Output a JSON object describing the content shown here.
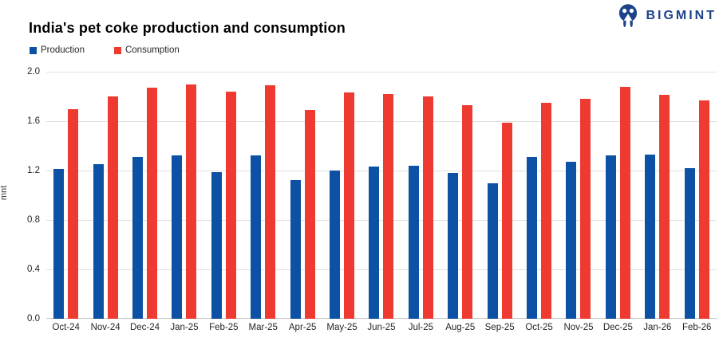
{
  "header": {
    "title": "India's pet coke production and consumption",
    "logo": {
      "text": "BIGMINT",
      "color": "#1d4289"
    }
  },
  "legend": [
    {
      "label": "Production",
      "color": "#0d51a5"
    },
    {
      "label": "Consumption",
      "color": "#ee3a31"
    }
  ],
  "chart_data": {
    "type": "bar",
    "title": "India's pet coke production and consumption",
    "xlabel": "",
    "ylabel": "mnt",
    "ylim": [
      0,
      2.0
    ],
    "ytick_labels": [
      "2.0",
      "1.6",
      "1.2",
      "0.8",
      "0.4",
      "0.0"
    ],
    "grid": true,
    "legend_position": "top-left",
    "categories": [
      "Oct-24",
      "Nov-24",
      "Dec-24",
      "Jan-25",
      "Feb-25",
      "Mar-25",
      "Apr-25",
      "May-25",
      "Jun-25",
      "Jul-25",
      "Aug-25",
      "Sep-25",
      "Oct-25",
      "Nov-25",
      "Dec-25",
      "Jan-26",
      "Feb-26"
    ],
    "series": [
      {
        "name": "Production",
        "color": "#0d51a5",
        "values": [
          1.21,
          1.25,
          1.31,
          1.32,
          1.19,
          1.32,
          1.12,
          1.2,
          1.23,
          1.24,
          1.18,
          1.1,
          1.31,
          1.27,
          1.32,
          1.33,
          1.22
        ]
      },
      {
        "name": "Consumption",
        "color": "#ee3a31",
        "values": [
          1.7,
          1.8,
          1.87,
          1.9,
          1.84,
          1.89,
          1.69,
          1.83,
          1.82,
          1.8,
          1.73,
          1.59,
          1.75,
          1.78,
          1.88,
          1.81,
          1.77
        ]
      }
    ]
  }
}
